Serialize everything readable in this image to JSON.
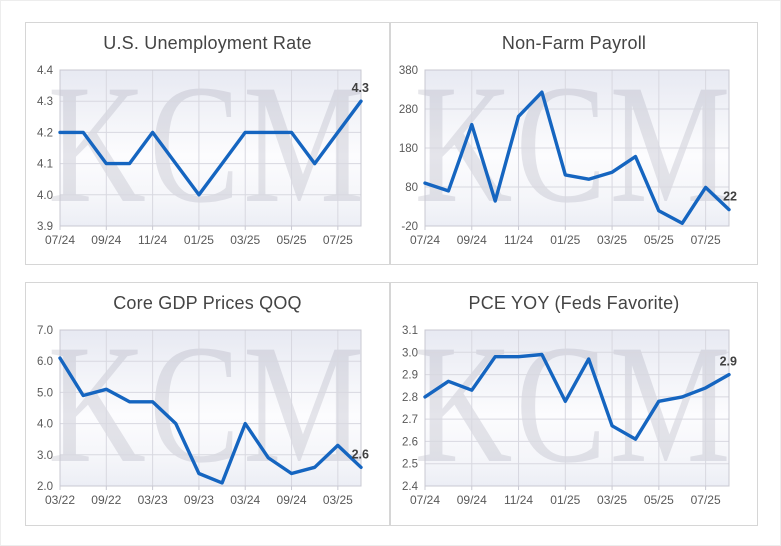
{
  "watermark": "KCM",
  "colors": {
    "line": "#1565c0",
    "grid": "#d8d8e0",
    "plot_border": "#c8c8d2",
    "card_border": "#d6d6d6",
    "title_text": "#444444",
    "tick_text": "#595959",
    "end_label_text": "#404040",
    "watermark_text": "rgba(105,105,130,0.16)"
  },
  "chart_data": [
    {
      "type": "line",
      "title": "U.S. Unemployment Rate",
      "x": [
        "07/24",
        "08/24",
        "09/24",
        "10/24",
        "11/24",
        "12/24",
        "01/25",
        "02/25",
        "03/25",
        "04/25",
        "05/25",
        "06/25",
        "07/25",
        "08/25"
      ],
      "values": [
        4.2,
        4.2,
        4.1,
        4.1,
        4.2,
        4.1,
        4.0,
        4.1,
        4.2,
        4.2,
        4.2,
        4.1,
        4.2,
        4.3
      ],
      "ylim": [
        3.9,
        4.4
      ],
      "ytick_labels": [
        "4.4",
        "4.3",
        "4.2",
        "4.1",
        "4.0",
        "3.9"
      ],
      "xtick_labels": [
        "07/24",
        "09/24",
        "11/24",
        "01/25",
        "03/25",
        "05/25",
        "07/25"
      ],
      "end_label": "4.3",
      "grid": true,
      "legend": "none"
    },
    {
      "type": "line",
      "title": "Non-Farm Payroll",
      "x": [
        "07/24",
        "08/24",
        "09/24",
        "10/24",
        "11/24",
        "12/24",
        "01/25",
        "02/25",
        "03/25",
        "04/25",
        "05/25",
        "06/25",
        "07/25",
        "08/25"
      ],
      "values": [
        90,
        70,
        240,
        44,
        261,
        323,
        111,
        100,
        118,
        158,
        19,
        -13,
        79,
        22
      ],
      "ylim": [
        -20,
        380
      ],
      "ytick_labels": [
        "380",
        "280",
        "180",
        "80",
        "-20"
      ],
      "xtick_labels": [
        "07/24",
        "09/24",
        "11/24",
        "01/25",
        "03/25",
        "05/25",
        "07/25"
      ],
      "end_label": "22",
      "grid": true,
      "legend": "none"
    },
    {
      "type": "line",
      "title": "Core GDP Prices QOQ",
      "x": [
        "03/22",
        "06/22",
        "09/22",
        "12/22",
        "03/23",
        "06/23",
        "09/23",
        "12/23",
        "03/24",
        "06/24",
        "09/24",
        "12/24",
        "03/25",
        "06/25"
      ],
      "values": [
        6.1,
        4.9,
        5.1,
        4.7,
        4.7,
        4.0,
        2.4,
        2.1,
        4.0,
        2.9,
        2.4,
        2.6,
        3.3,
        2.6
      ],
      "ylim": [
        2.0,
        7.0
      ],
      "ytick_labels": [
        "7.0",
        "6.0",
        "5.0",
        "4.0",
        "3.0",
        "2.0"
      ],
      "xtick_labels": [
        "03/22",
        "09/22",
        "03/23",
        "09/23",
        "03/24",
        "09/24",
        "03/25"
      ],
      "end_label": "2.6",
      "grid": true,
      "legend": "none"
    },
    {
      "type": "line",
      "title": "PCE YOY (Feds Favorite)",
      "x": [
        "07/24",
        "08/24",
        "09/24",
        "10/24",
        "11/24",
        "12/24",
        "01/25",
        "02/25",
        "03/25",
        "04/25",
        "05/25",
        "06/25",
        "07/25",
        "08/25"
      ],
      "values": [
        2.8,
        2.87,
        2.83,
        2.98,
        2.98,
        2.99,
        2.78,
        2.97,
        2.67,
        2.61,
        2.78,
        2.8,
        2.84,
        2.9
      ],
      "ylim": [
        2.4,
        3.1
      ],
      "ytick_labels": [
        "3.1",
        "3.0",
        "2.9",
        "2.8",
        "2.7",
        "2.6",
        "2.5",
        "2.4"
      ],
      "xtick_labels": [
        "07/24",
        "09/24",
        "11/24",
        "01/25",
        "03/25",
        "05/25",
        "07/25"
      ],
      "end_label": "2.9",
      "grid": true,
      "legend": "none"
    }
  ]
}
